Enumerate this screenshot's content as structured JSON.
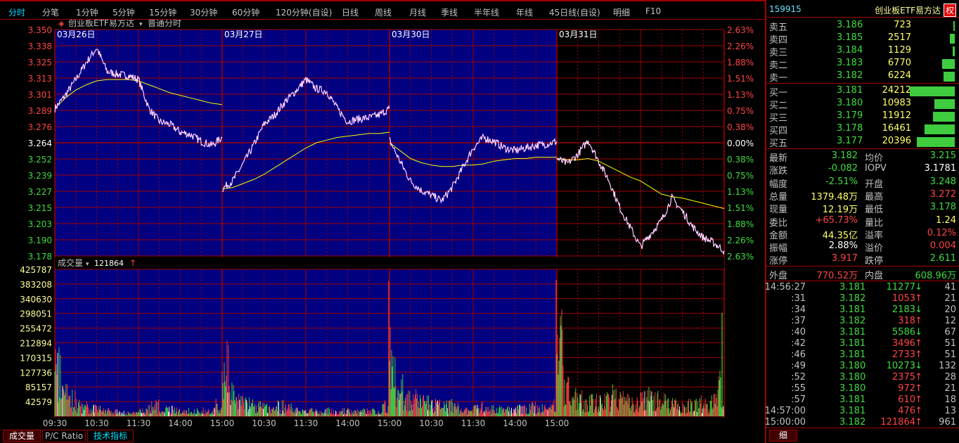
{
  "toolbar": {
    "items": [
      "分时",
      "分笔",
      "1分钟",
      "5分钟",
      "15分钟",
      "30分钟",
      "60分钟",
      "120分钟(自设)",
      "日线",
      "周线",
      "月线",
      "季线",
      "半年线",
      "年线",
      "45日线(自设)",
      "明细",
      "F10"
    ],
    "active": "分时"
  },
  "chart_header": {
    "name": "创业板ETF易方达",
    "mode": "普通分时",
    "icon": "diamond-icon"
  },
  "colors": {
    "up": "#ff4444",
    "down": "#3fdc3f",
    "grid": "#a00000",
    "pane_blue": "#000080",
    "price_line": "#ffffff",
    "avg_line": "#ffff00",
    "volume_axis": "#ffff99"
  },
  "chart_data": {
    "type": "line",
    "days": [
      "03月26日",
      "03月27日",
      "03月30日",
      "03月31日"
    ],
    "prev_close": 3.264,
    "y_ticks": [
      "3.350",
      "3.338",
      "3.325",
      "3.313",
      "3.301",
      "3.289",
      "3.276",
      "3.264",
      "3.252",
      "3.239",
      "3.227",
      "3.215",
      "3.203",
      "3.190",
      "3.178"
    ],
    "y_pct_ticks": [
      "2.63%",
      "2.26%",
      "1.88%",
      "1.51%",
      "1.13%",
      "0.75%",
      "0.38%",
      "0.00%",
      "0.38%",
      "0.75%",
      "1.13%",
      "1.51%",
      "1.88%",
      "2.26%",
      "2.63%"
    ],
    "ylim": [
      3.178,
      3.35
    ],
    "x_ticks": [
      "09:30",
      "10:30",
      "11:30",
      "14:00",
      "15:00",
      "10:30",
      "11:30",
      "14:00",
      "15:00",
      "10:30",
      "11:30",
      "14:00",
      "15:00"
    ],
    "price_interval": "15min",
    "price": [
      [
        3.29,
        3.3,
        3.312,
        3.325,
        3.336,
        3.318,
        3.316,
        3.315,
        3.312,
        3.29,
        3.28,
        3.278,
        3.272,
        3.27,
        3.265,
        3.262,
        3.268
      ],
      [
        3.229,
        3.235,
        3.248,
        3.262,
        3.278,
        3.285,
        3.295,
        3.303,
        3.312,
        3.305,
        3.303,
        3.29,
        3.28,
        3.282,
        3.283,
        3.285,
        3.29
      ],
      [
        3.266,
        3.25,
        3.235,
        3.228,
        3.224,
        3.22,
        3.23,
        3.245,
        3.26,
        3.268,
        3.265,
        3.26,
        3.258,
        3.26,
        3.262,
        3.263,
        3.265
      ],
      [
        3.252,
        3.248,
        3.255,
        3.266,
        3.25,
        3.235,
        3.215,
        3.2,
        3.185,
        3.195,
        3.205,
        3.222,
        3.212,
        3.2,
        3.192,
        3.188,
        3.182
      ]
    ],
    "avg_price": [
      [
        3.29,
        3.298,
        3.304,
        3.308,
        3.311,
        3.312,
        3.312,
        3.312,
        3.311,
        3.308,
        3.305,
        3.302,
        3.3,
        3.298,
        3.296,
        3.294,
        3.293
      ],
      [
        3.229,
        3.23,
        3.233,
        3.236,
        3.24,
        3.245,
        3.25,
        3.255,
        3.26,
        3.264,
        3.266,
        3.268,
        3.269,
        3.27,
        3.271,
        3.271,
        3.272
      ],
      [
        3.264,
        3.258,
        3.252,
        3.249,
        3.247,
        3.246,
        3.246,
        3.247,
        3.247,
        3.248,
        3.25,
        3.251,
        3.252,
        3.252,
        3.253,
        3.253,
        3.253
      ],
      [
        3.252,
        3.251,
        3.251,
        3.252,
        3.25,
        3.246,
        3.242,
        3.238,
        3.235,
        3.23,
        3.225,
        3.223,
        3.222,
        3.22,
        3.218,
        3.216,
        3.214
      ]
    ],
    "volume_header": {
      "label": "成交量",
      "value": "121864"
    },
    "volume_ticks": [
      "425787",
      "383208",
      "340630",
      "298051",
      "255472",
      "212894",
      "170315",
      "127736",
      "85157",
      "42579"
    ],
    "volume_ylim": [
      0,
      425787
    ],
    "volume_interval": "10min",
    "volume": [
      [
        130000,
        60000,
        45000,
        30000,
        25000,
        20000,
        18000,
        15000,
        12000,
        10000,
        9000,
        8000,
        15000,
        25000,
        30000,
        20000,
        18000,
        15000,
        15000,
        15000,
        14000,
        15000,
        15000,
        30000
      ],
      [
        130000,
        60000,
        40000,
        35000,
        30000,
        25000,
        22000,
        20000,
        28000,
        25000,
        15000,
        12000,
        15000,
        14000,
        12000,
        15000,
        14000,
        15000,
        14000,
        12000,
        14000,
        13000,
        15000,
        30000
      ],
      [
        160000,
        70000,
        50000,
        45000,
        40000,
        35000,
        30000,
        28000,
        30000,
        25000,
        20000,
        18000,
        28000,
        25000,
        20000,
        22000,
        20000,
        18000,
        20000,
        20000,
        25000,
        22000,
        20000,
        30000
      ],
      [
        180000,
        70000,
        60000,
        45000,
        40000,
        38000,
        40000,
        50000,
        60000,
        50000,
        40000,
        35000,
        45000,
        50000,
        45000,
        40000,
        35000,
        30000,
        30000,
        30000,
        35000,
        30000,
        40000,
        80000
      ]
    ],
    "volume_spikes": [
      {
        "day": 1,
        "time": "15:00",
        "value": 392000
      },
      {
        "day": 2,
        "time": "15:00",
        "value": 395000
      },
      {
        "day": 3,
        "time": "14:58",
        "value": 300000
      }
    ]
  },
  "bottom_tabs": [
    "成交量",
    "P/C Ratio",
    "技术指标"
  ],
  "panel": {
    "code": "159915",
    "name": "创业板ETF易方达",
    "badge": "权",
    "asks": [
      {
        "label": "卖五",
        "price": "3.186",
        "vol": "723"
      },
      {
        "label": "卖四",
        "price": "3.185",
        "vol": "2517"
      },
      {
        "label": "卖三",
        "price": "3.184",
        "vol": "1129"
      },
      {
        "label": "卖二",
        "price": "3.183",
        "vol": "6770"
      },
      {
        "label": "卖一",
        "price": "3.182",
        "vol": "6224"
      }
    ],
    "bids": [
      {
        "label": "买一",
        "price": "3.181",
        "vol": "24212"
      },
      {
        "label": "买二",
        "price": "3.180",
        "vol": "10983"
      },
      {
        "label": "买三",
        "price": "3.179",
        "vol": "11912"
      },
      {
        "label": "买四",
        "price": "3.178",
        "vol": "16461"
      },
      {
        "label": "买五",
        "price": "3.177",
        "vol": "20396"
      }
    ],
    "stats": [
      {
        "l1": "最新",
        "v1": "3.182",
        "c1": "g",
        "l2": "均价",
        "v2": "3.215",
        "c2": "g"
      },
      {
        "l1": "涨跌",
        "v1": "-0.082",
        "c1": "g",
        "l2": "IOPV",
        "v2": "3.1781",
        "c2": "w"
      },
      {
        "l1": "幅度",
        "v1": "-2.51%",
        "c1": "g",
        "l2": "开盘",
        "v2": "3.248",
        "c2": "g"
      },
      {
        "l1": "总量",
        "v1": "1379.48万",
        "c1": "y",
        "l2": "最高",
        "v2": "3.272",
        "c2": "r"
      },
      {
        "l1": "现量",
        "v1": "12.19万",
        "c1": "y",
        "l2": "最低",
        "v2": "3.178",
        "c2": "g"
      },
      {
        "l1": "委比",
        "v1": "+65.73%",
        "c1": "r",
        "l2": "量比",
        "v2": "1.24",
        "c2": "y"
      },
      {
        "l1": "金额",
        "v1": "44.35亿",
        "c1": "y",
        "l2": "溢率",
        "v2": "0.12%",
        "c2": "r"
      },
      {
        "l1": "振幅",
        "v1": "2.88%",
        "c1": "w",
        "l2": "溢价",
        "v2": "0.004",
        "c2": "r"
      },
      {
        "l1": "涨停",
        "v1": "3.917",
        "c1": "r",
        "l2": "跌停",
        "v2": "2.611",
        "c2": "g"
      }
    ],
    "outer": {
      "l1": "外盘",
      "v1": "770.52万",
      "l2": "内盘",
      "v2": "608.96万"
    },
    "trades": [
      {
        "time": "14:56:27",
        "price": "3.181",
        "vol": "11277",
        "dir": "down",
        "n": "41"
      },
      {
        "time": ":31",
        "price": "3.182",
        "vol": "1053",
        "dir": "up",
        "n": "21"
      },
      {
        "time": ":34",
        "price": "3.181",
        "vol": "2183",
        "dir": "down",
        "n": "20"
      },
      {
        "time": ":37",
        "price": "3.182",
        "vol": "318",
        "dir": "up",
        "n": "12"
      },
      {
        "time": ":40",
        "price": "3.181",
        "vol": "5586",
        "dir": "down",
        "n": "67"
      },
      {
        "time": ":42",
        "price": "3.181",
        "vol": "3496",
        "dir": "up",
        "n": "51"
      },
      {
        "time": ":46",
        "price": "3.181",
        "vol": "2733",
        "dir": "up",
        "n": "51"
      },
      {
        "time": ":49",
        "price": "3.180",
        "vol": "10273",
        "dir": "down",
        "n": "132"
      },
      {
        "time": ":52",
        "price": "3.180",
        "vol": "2375",
        "dir": "up",
        "n": "28"
      },
      {
        "time": ":55",
        "price": "3.180",
        "vol": "972",
        "dir": "up",
        "n": "21"
      },
      {
        "time": ":57",
        "price": "3.181",
        "vol": "610",
        "dir": "up",
        "n": "18"
      },
      {
        "time": "14:57:00",
        "price": "3.181",
        "vol": "476",
        "dir": "up",
        "n": "13"
      },
      {
        "time": "15:00:00",
        "price": "3.182",
        "vol": "121864",
        "dir": "up",
        "n": "961"
      }
    ],
    "detail_tab": "细"
  }
}
